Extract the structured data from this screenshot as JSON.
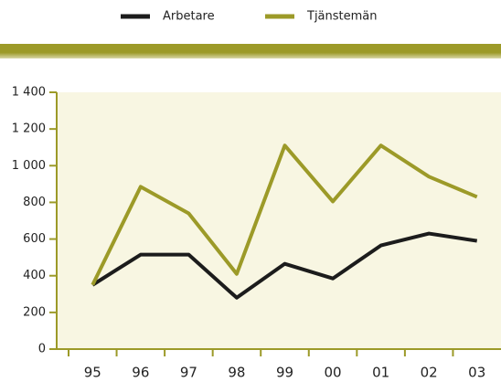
{
  "chart_data": {
    "type": "line",
    "categories": [
      "95",
      "96",
      "97",
      "98",
      "99",
      "00",
      "01",
      "02",
      "03"
    ],
    "series": [
      {
        "name": "Arbetare",
        "color": "#1c1c1c",
        "values": [
          350,
          515,
          515,
          280,
          465,
          385,
          565,
          630,
          590
        ]
      },
      {
        "name": "Tjänstemän",
        "color": "#9c9a28",
        "values": [
          350,
          885,
          740,
          410,
          1110,
          805,
          1110,
          940,
          830
        ]
      }
    ],
    "ylim": [
      0,
      1400
    ],
    "yticks": [
      0,
      200,
      400,
      600,
      800,
      {
        "value": 1000,
        "label": "1 000"
      },
      {
        "value": 1200,
        "label": "1 200"
      },
      {
        "value": 1400,
        "label": "1 400"
      }
    ],
    "legend": "top"
  }
}
